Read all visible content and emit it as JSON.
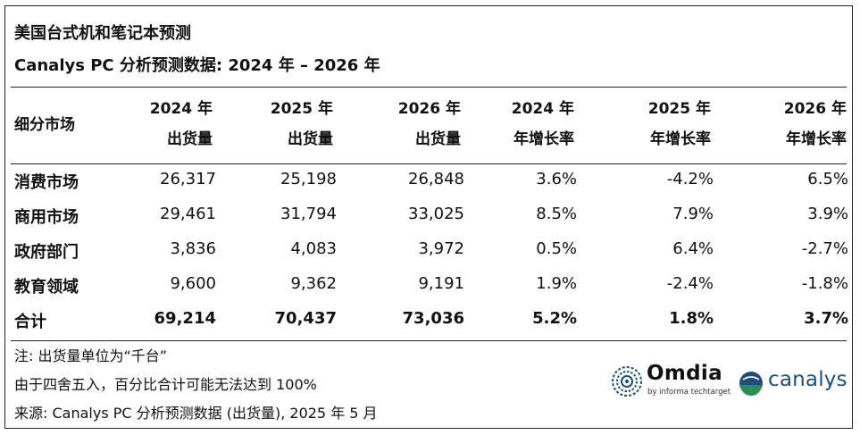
{
  "title": "美国台式机和笔记本预测",
  "subtitle": "Canalys PC 分析预测数据: 2024 年 – 2026 年",
  "header": {
    "segment": "细分市场",
    "columns": [
      {
        "line1": "2024 年",
        "line2": "出货量"
      },
      {
        "line1": "2025 年",
        "line2": "出货量"
      },
      {
        "line1": "2026 年",
        "line2": "出货量"
      },
      {
        "line1": "2024 年",
        "line2": "年增长率"
      },
      {
        "line1": "2025 年",
        "line2": "年增长率"
      },
      {
        "line1": "2026 年",
        "line2": "年增长率"
      }
    ]
  },
  "rows": [
    {
      "label": "消费市场",
      "values": [
        "26,317",
        "25,198",
        "26,848",
        "3.6%",
        "-4.2%",
        "6.5%"
      ]
    },
    {
      "label": "商用市场",
      "values": [
        "29,461",
        "31,794",
        "33,025",
        "8.5%",
        "7.9%",
        "3.9%"
      ]
    },
    {
      "label": "政府部门",
      "values": [
        "3,836",
        "4,083",
        "3,972",
        "0.5%",
        "6.4%",
        "-2.7%"
      ]
    },
    {
      "label": "教育领域",
      "values": [
        "9,600",
        "9,362",
        "9,191",
        "1.9%",
        "-2.4%",
        "-1.8%"
      ]
    }
  ],
  "total": {
    "label": "合计",
    "values": [
      "69,214",
      "70,437",
      "73,036",
      "5.2%",
      "1.8%",
      "3.7%"
    ]
  },
  "notes": [
    "注: 出货量单位为“千台”",
    "由于四舍五入，百分比合计可能无法达到 100%",
    "来源: Canalys PC 分析预测数据 (出货量), 2025 年 5 月"
  ],
  "logos": {
    "omdia": {
      "name": "Omdia",
      "tagline": "by informa techtarget",
      "color": "#1e4f7a"
    },
    "canalys": {
      "name": "canalys",
      "color": "#1e4f7a",
      "accent": "#2e8b57"
    }
  }
}
